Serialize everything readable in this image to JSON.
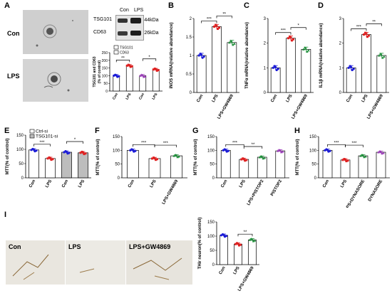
{
  "panel_letters": {
    "a": "A",
    "b": "B",
    "c": "C",
    "d": "D",
    "e": "E",
    "f": "F",
    "g": "G",
    "h": "H",
    "i": "I"
  },
  "panel_a": {
    "row_labels": [
      "Con",
      "LPS"
    ],
    "blot_lanes": [
      "Con",
      "LPS"
    ],
    "blot_rows": [
      {
        "protein": "TSG101",
        "size": "-44kDa"
      },
      {
        "protein": "CD63",
        "size": "-26kDa"
      }
    ]
  },
  "panel_i": {
    "labels": [
      "Con",
      "LPS",
      "LPS+GW4869"
    ]
  },
  "colors": {
    "blue": "#1b1bd9",
    "red": "#e02020",
    "green": "#1f8f3a",
    "purple": "#9a3ab8"
  },
  "chart_data": [
    {
      "id": "A-inset",
      "type": "bar",
      "ylabel": "TSG101 and CD63\n(% of control)",
      "categories": [
        "Con",
        "LPS",
        "Con",
        "LPS"
      ],
      "values": [
        100,
        165,
        100,
        140
      ],
      "ylim": [
        0,
        250
      ],
      "yticks": [
        0,
        50,
        100,
        150,
        200,
        250
      ],
      "legend": [
        "TSG101",
        "CD63"
      ],
      "sig": [
        {
          "from": 0,
          "to": 1,
          "label": "**"
        },
        {
          "from": 2,
          "to": 3,
          "label": "*"
        }
      ]
    },
    {
      "id": "B",
      "type": "bar",
      "ylabel": "iNOS mRNA(relative abundance)",
      "categories": [
        "Con",
        "LPS",
        "LPS+GW4869"
      ],
      "values": [
        1.0,
        1.78,
        1.35
      ],
      "ylim": [
        0,
        2.0
      ],
      "yticks": [
        0,
        0.5,
        1.0,
        1.5,
        2.0
      ],
      "sig": [
        {
          "from": 0,
          "to": 1,
          "label": "***"
        },
        {
          "from": 1,
          "to": 2,
          "label": "**"
        }
      ]
    },
    {
      "id": "C",
      "type": "bar",
      "ylabel": "TNFα mRNA(relative abundance)",
      "categories": [
        "Con",
        "LPS",
        "LPS+GW4869"
      ],
      "values": [
        1.0,
        2.2,
        1.75
      ],
      "ylim": [
        0,
        3
      ],
      "yticks": [
        0,
        1,
        2,
        3
      ],
      "sig": [
        {
          "from": 0,
          "to": 1,
          "label": "***"
        },
        {
          "from": 1,
          "to": 2,
          "label": "*"
        }
      ]
    },
    {
      "id": "D",
      "type": "bar",
      "ylabel": "IL1β mRNA(relative abundance)",
      "categories": [
        "Con",
        "LPS",
        "LPS+GW4869"
      ],
      "values": [
        1.0,
        2.35,
        1.5
      ],
      "ylim": [
        0,
        3
      ],
      "yticks": [
        0,
        1,
        2,
        3
      ],
      "sig": [
        {
          "from": 0,
          "to": 1,
          "label": "***"
        },
        {
          "from": 1,
          "to": 2,
          "label": "**"
        }
      ]
    },
    {
      "id": "E",
      "type": "bar",
      "ylabel": "MTT(% of control)",
      "categories": [
        "Con",
        "LPS",
        "Con",
        "LPS"
      ],
      "values": [
        98,
        68,
        90,
        88
      ],
      "ylim": [
        0,
        150
      ],
      "yticks": [
        0,
        50,
        100,
        150
      ],
      "legend": [
        "Ctrl-si",
        "TSG101-si"
      ],
      "sig": [
        {
          "from": 0,
          "to": 1,
          "label": "***"
        },
        {
          "from": 2,
          "to": 3,
          "label": "*"
        }
      ]
    },
    {
      "id": "F",
      "type": "bar",
      "ylabel": "MTT(% of control)",
      "categories": [
        "Con",
        "LPS",
        "LPS+GW4869"
      ],
      "values": [
        100,
        70,
        80
      ],
      "ylim": [
        0,
        150
      ],
      "yticks": [
        0,
        50,
        100,
        150
      ],
      "sig": [
        {
          "from": 0,
          "to": 1,
          "label": "***"
        },
        {
          "from": 1,
          "to": 2,
          "label": "***"
        }
      ]
    },
    {
      "id": "G",
      "type": "bar",
      "ylabel": "MTT(% of control)",
      "categories": [
        "Con",
        "LPS",
        "LPS+PISTOP2",
        "PISTOP2"
      ],
      "values": [
        100,
        67,
        75,
        98
      ],
      "ylim": [
        0,
        150
      ],
      "yticks": [
        0,
        50,
        100,
        150
      ],
      "sig": [
        {
          "from": 0,
          "to": 1,
          "label": "***"
        },
        {
          "from": 1,
          "to": 2,
          "label": "**"
        }
      ]
    },
    {
      "id": "H",
      "type": "bar",
      "ylabel": "MTT(% of control)",
      "categories": [
        "Con",
        "LPS",
        "LPS+DYNASORE",
        "DYNASORE"
      ],
      "values": [
        100,
        65,
        80,
        93
      ],
      "ylim": [
        0,
        150
      ],
      "yticks": [
        0,
        50,
        100,
        150
      ],
      "sig": [
        {
          "from": 0,
          "to": 1,
          "label": "***"
        },
        {
          "from": 1,
          "to": 2,
          "label": "***"
        }
      ]
    },
    {
      "id": "I-bar",
      "type": "bar",
      "ylabel": "THir neuron(% of control)",
      "categories": [
        "Con",
        "LPS",
        "LPS+GW4869"
      ],
      "values": [
        103,
        72,
        87
      ],
      "ylim": [
        0,
        150
      ],
      "yticks": [
        0,
        50,
        100,
        150
      ],
      "sig": [
        {
          "from": 1,
          "to": 2,
          "label": "**"
        }
      ]
    }
  ]
}
